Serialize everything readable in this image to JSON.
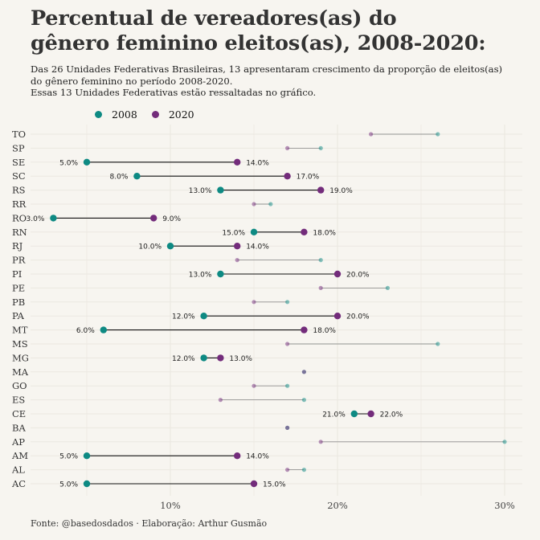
{
  "chart_data": {
    "type": "dumbbell",
    "title": "Percentual de vereadores(as) do\ngênero feminino eleitos(as), 2008-2020:",
    "subtitle": "Das 26 Unidades Federativas Brasileiras, 13 apresentaram crescimento da proporção de eleitos(as)\ndo gênero feminino no período 2008-2020.\nEssas 13 Unidades Federativas estão ressaltadas no gráfico.",
    "caption": "Fonte: @basedosdados · Elaboração: Arthur Gusmão",
    "xlabel": "",
    "ylabel": "",
    "xlim": [
      2,
      31
    ],
    "x_ticks": [
      10,
      20,
      30
    ],
    "x_tick_labels": [
      "10%",
      "20%",
      "30%"
    ],
    "legend_position": "top-left",
    "grid": true,
    "colors": {
      "2008": "#0e8a83",
      "2020": "#732c7b",
      "line_highlight": "#111111",
      "line_muted": "#888888"
    },
    "series": [
      {
        "name": "2008"
      },
      {
        "name": "2020"
      }
    ],
    "rows": [
      {
        "uf": "TO",
        "v2008": 26,
        "v2020": 22,
        "highlight": false,
        "label2008": "",
        "label2020": ""
      },
      {
        "uf": "SP",
        "v2008": 19,
        "v2020": 17,
        "highlight": false,
        "label2008": "",
        "label2020": ""
      },
      {
        "uf": "SE",
        "v2008": 5,
        "v2020": 14,
        "highlight": true,
        "label2008": "5.0%",
        "label2020": "14.0%"
      },
      {
        "uf": "SC",
        "v2008": 8,
        "v2020": 17,
        "highlight": true,
        "label2008": "8.0%",
        "label2020": "17.0%"
      },
      {
        "uf": "RS",
        "v2008": 13,
        "v2020": 19,
        "highlight": true,
        "label2008": "13.0%",
        "label2020": "19.0%"
      },
      {
        "uf": "RR",
        "v2008": 16,
        "v2020": 15,
        "highlight": false,
        "label2008": "",
        "label2020": ""
      },
      {
        "uf": "RO",
        "v2008": 3,
        "v2020": 9,
        "highlight": true,
        "label2008": "3.0%",
        "label2020": "9.0%"
      },
      {
        "uf": "RN",
        "v2008": 15,
        "v2020": 18,
        "highlight": true,
        "label2008": "15.0%",
        "label2020": "18.0%"
      },
      {
        "uf": "RJ",
        "v2008": 10,
        "v2020": 14,
        "highlight": true,
        "label2008": "10.0%",
        "label2020": "14.0%"
      },
      {
        "uf": "PR",
        "v2008": 19,
        "v2020": 14,
        "highlight": false,
        "label2008": "",
        "label2020": ""
      },
      {
        "uf": "PI",
        "v2008": 13,
        "v2020": 20,
        "highlight": true,
        "label2008": "13.0%",
        "label2020": "20.0%"
      },
      {
        "uf": "PE",
        "v2008": 23,
        "v2020": 19,
        "highlight": false,
        "label2008": "",
        "label2020": ""
      },
      {
        "uf": "PB",
        "v2008": 17,
        "v2020": 15,
        "highlight": false,
        "label2008": "",
        "label2020": ""
      },
      {
        "uf": "PA",
        "v2008": 12,
        "v2020": 20,
        "highlight": true,
        "label2008": "12.0%",
        "label2020": "20.0%"
      },
      {
        "uf": "MT",
        "v2008": 6,
        "v2020": 18,
        "highlight": true,
        "label2008": "6.0%",
        "label2020": "18.0%"
      },
      {
        "uf": "MS",
        "v2008": 26,
        "v2020": 17,
        "highlight": false,
        "label2008": "",
        "label2020": ""
      },
      {
        "uf": "MG",
        "v2008": 12,
        "v2020": 13,
        "highlight": true,
        "label2008": "12.0%",
        "label2020": "13.0%"
      },
      {
        "uf": "MA",
        "v2008": 18,
        "v2020": 18,
        "highlight": false,
        "label2008": "",
        "label2020": ""
      },
      {
        "uf": "GO",
        "v2008": 17,
        "v2020": 15,
        "highlight": false,
        "label2008": "",
        "label2020": ""
      },
      {
        "uf": "ES",
        "v2008": 18,
        "v2020": 13,
        "highlight": false,
        "label2008": "",
        "label2020": ""
      },
      {
        "uf": "CE",
        "v2008": 21,
        "v2020": 22,
        "highlight": true,
        "label2008": "21.0%",
        "label2020": "22.0%"
      },
      {
        "uf": "BA",
        "v2008": 17,
        "v2020": 17,
        "highlight": false,
        "label2008": "",
        "label2020": ""
      },
      {
        "uf": "AP",
        "v2008": 30,
        "v2020": 19,
        "highlight": false,
        "label2008": "",
        "label2020": ""
      },
      {
        "uf": "AM",
        "v2008": 5,
        "v2020": 14,
        "highlight": true,
        "label2008": "5.0%",
        "label2020": "14.0%"
      },
      {
        "uf": "AL",
        "v2008": 18,
        "v2020": 17,
        "highlight": false,
        "label2008": "",
        "label2020": ""
      },
      {
        "uf": "AC",
        "v2008": 5,
        "v2020": 15,
        "highlight": true,
        "label2008": "5.0%",
        "label2020": "15.0%"
      }
    ]
  }
}
